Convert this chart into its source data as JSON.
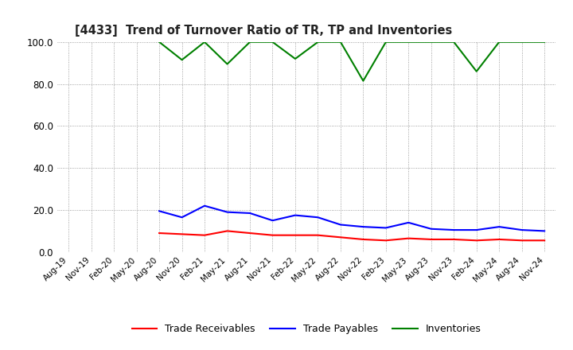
{
  "title": "[4433]  Trend of Turnover Ratio of TR, TP and Inventories",
  "xlabels": [
    "Aug-19",
    "Nov-19",
    "Feb-20",
    "May-20",
    "Aug-20",
    "Nov-20",
    "Feb-21",
    "May-21",
    "Aug-21",
    "Nov-21",
    "Feb-22",
    "May-22",
    "Aug-22",
    "Nov-22",
    "Feb-23",
    "May-23",
    "Aug-23",
    "Nov-23",
    "Feb-24",
    "May-24",
    "Aug-24",
    "Nov-24"
  ],
  "ylim": [
    0.0,
    100.0
  ],
  "yticks": [
    0.0,
    20.0,
    40.0,
    60.0,
    80.0,
    100.0
  ],
  "trade_receivables": [
    null,
    null,
    null,
    null,
    9.0,
    8.5,
    8.0,
    10.0,
    9.0,
    8.0,
    8.0,
    8.0,
    7.0,
    6.0,
    5.5,
    6.5,
    6.0,
    6.0,
    5.5,
    6.0,
    5.5,
    5.5
  ],
  "trade_payables": [
    null,
    null,
    null,
    null,
    19.5,
    16.5,
    22.0,
    19.0,
    18.5,
    15.0,
    17.5,
    16.5,
    13.0,
    12.0,
    11.5,
    14.0,
    11.0,
    10.5,
    10.5,
    12.0,
    10.5,
    10.0
  ],
  "inventories": [
    null,
    null,
    null,
    null,
    100.0,
    91.5,
    100.0,
    89.5,
    100.0,
    100.0,
    92.0,
    100.0,
    100.0,
    81.5,
    100.0,
    100.0,
    100.0,
    100.0,
    86.0,
    100.0,
    100.0,
    100.0
  ],
  "color_tr": "#ff0000",
  "color_tp": "#0000ff",
  "color_inv": "#008000",
  "legend_tr": "Trade Receivables",
  "legend_tp": "Trade Payables",
  "legend_inv": "Inventories",
  "bg_color": "#ffffff",
  "grid_color": "#888888"
}
